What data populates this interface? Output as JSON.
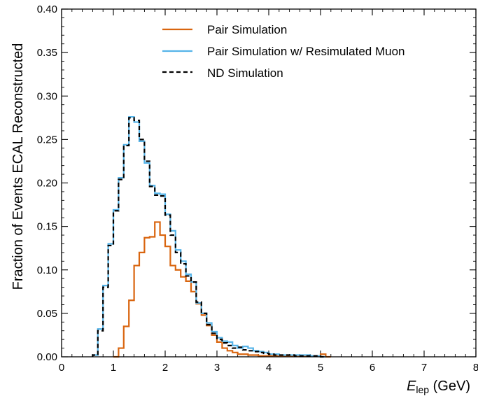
{
  "chart_data": {
    "type": "line",
    "title": "",
    "xlabel_main": "E",
    "xlabel_sub": "lep",
    "xlabel_unit": " (GeV)",
    "ylabel": "Fraction of Events ECAL Reconstructed",
    "xlim": [
      0,
      8
    ],
    "ylim": [
      0,
      0.4
    ],
    "x_ticks": [
      0,
      1,
      2,
      3,
      4,
      5,
      6,
      7,
      8
    ],
    "x_tick_labels": [
      "0",
      "1",
      "2",
      "3",
      "4",
      "5",
      "6",
      "7",
      "8"
    ],
    "y_ticks": [
      0,
      0.05,
      0.1,
      0.15,
      0.2,
      0.25,
      0.3,
      0.35,
      0.4
    ],
    "y_tick_labels": [
      "0.00",
      "0.05",
      "0.10",
      "0.15",
      "0.20",
      "0.25",
      "0.30",
      "0.35",
      "0.40"
    ],
    "grid": false,
    "legend_position": "top-center",
    "bin_width": 0.1,
    "series": [
      {
        "name": "Pair Simulation",
        "color": "#d9650f",
        "style": "solid",
        "bin_starts": [
          1.0,
          1.1,
          1.2,
          1.3,
          1.4,
          1.5,
          1.6,
          1.7,
          1.8,
          1.9,
          2.0,
          2.1,
          2.2,
          2.3,
          2.4,
          2.5,
          2.6,
          2.7,
          2.8,
          2.9,
          3.0,
          3.1,
          3.2,
          3.3,
          3.4,
          3.5,
          3.6,
          3.7,
          3.8,
          3.9,
          4.0,
          4.1,
          4.2,
          4.3,
          4.4,
          4.5,
          4.6,
          4.7,
          4.8,
          4.9,
          5.0,
          5.1
        ],
        "values": [
          0.0,
          0.01,
          0.035,
          0.065,
          0.105,
          0.12,
          0.137,
          0.138,
          0.155,
          0.14,
          0.127,
          0.105,
          0.1,
          0.092,
          0.087,
          0.075,
          0.061,
          0.048,
          0.036,
          0.025,
          0.017,
          0.01,
          0.007,
          0.005,
          0.003,
          0.003,
          0.002,
          0.002,
          0.001,
          0.001,
          0.001,
          0.001,
          0.001,
          0.001,
          0.001,
          0.001,
          0.001,
          0.001,
          0.001,
          0.001,
          0.003,
          0.0
        ]
      },
      {
        "name": "Pair Simulation w/ Resimulated Muon",
        "color": "#56b4e9",
        "style": "solid",
        "bin_starts": [
          0.6,
          0.7,
          0.8,
          0.9,
          1.0,
          1.1,
          1.2,
          1.3,
          1.4,
          1.5,
          1.6,
          1.7,
          1.8,
          1.9,
          2.0,
          2.1,
          2.2,
          2.3,
          2.4,
          2.5,
          2.6,
          2.7,
          2.8,
          2.9,
          3.0,
          3.1,
          3.2,
          3.3,
          3.4,
          3.5,
          3.6,
          3.7,
          3.8,
          3.9,
          4.0,
          4.1,
          4.2,
          4.3,
          4.4,
          4.5,
          4.6,
          4.7,
          4.8,
          4.9,
          5.0
        ],
        "values": [
          0.002,
          0.032,
          0.082,
          0.13,
          0.169,
          0.206,
          0.244,
          0.276,
          0.27,
          0.248,
          0.223,
          0.197,
          0.188,
          0.187,
          0.164,
          0.145,
          0.123,
          0.11,
          0.095,
          0.086,
          0.062,
          0.05,
          0.039,
          0.029,
          0.022,
          0.018,
          0.017,
          0.013,
          0.01,
          0.012,
          0.01,
          0.007,
          0.006,
          0.005,
          0.003,
          0.003,
          0.002,
          0.002,
          0.002,
          0.002,
          0.002,
          0.002,
          0.001,
          0.001,
          0.0
        ]
      },
      {
        "name": "ND Simulation",
        "color": "#000000",
        "style": "dashed",
        "bin_starts": [
          0.6,
          0.7,
          0.8,
          0.9,
          1.0,
          1.1,
          1.2,
          1.3,
          1.4,
          1.5,
          1.6,
          1.7,
          1.8,
          1.9,
          2.0,
          2.1,
          2.2,
          2.3,
          2.4,
          2.5,
          2.6,
          2.7,
          2.8,
          2.9,
          3.0,
          3.1,
          3.2,
          3.3,
          3.4,
          3.5,
          3.6,
          3.7,
          3.8,
          3.9,
          4.0,
          4.1,
          4.2,
          4.3,
          4.4,
          4.5,
          4.6,
          4.7,
          4.8,
          4.9,
          5.0
        ],
        "values": [
          0.002,
          0.03,
          0.08,
          0.128,
          0.168,
          0.204,
          0.243,
          0.275,
          0.272,
          0.25,
          0.225,
          0.196,
          0.186,
          0.185,
          0.163,
          0.14,
          0.12,
          0.107,
          0.093,
          0.086,
          0.063,
          0.05,
          0.037,
          0.027,
          0.02,
          0.016,
          0.013,
          0.01,
          0.011,
          0.008,
          0.007,
          0.006,
          0.005,
          0.004,
          0.003,
          0.002,
          0.002,
          0.002,
          0.002,
          0.001,
          0.001,
          0.001,
          0.001,
          0.001,
          0.0
        ]
      }
    ]
  }
}
